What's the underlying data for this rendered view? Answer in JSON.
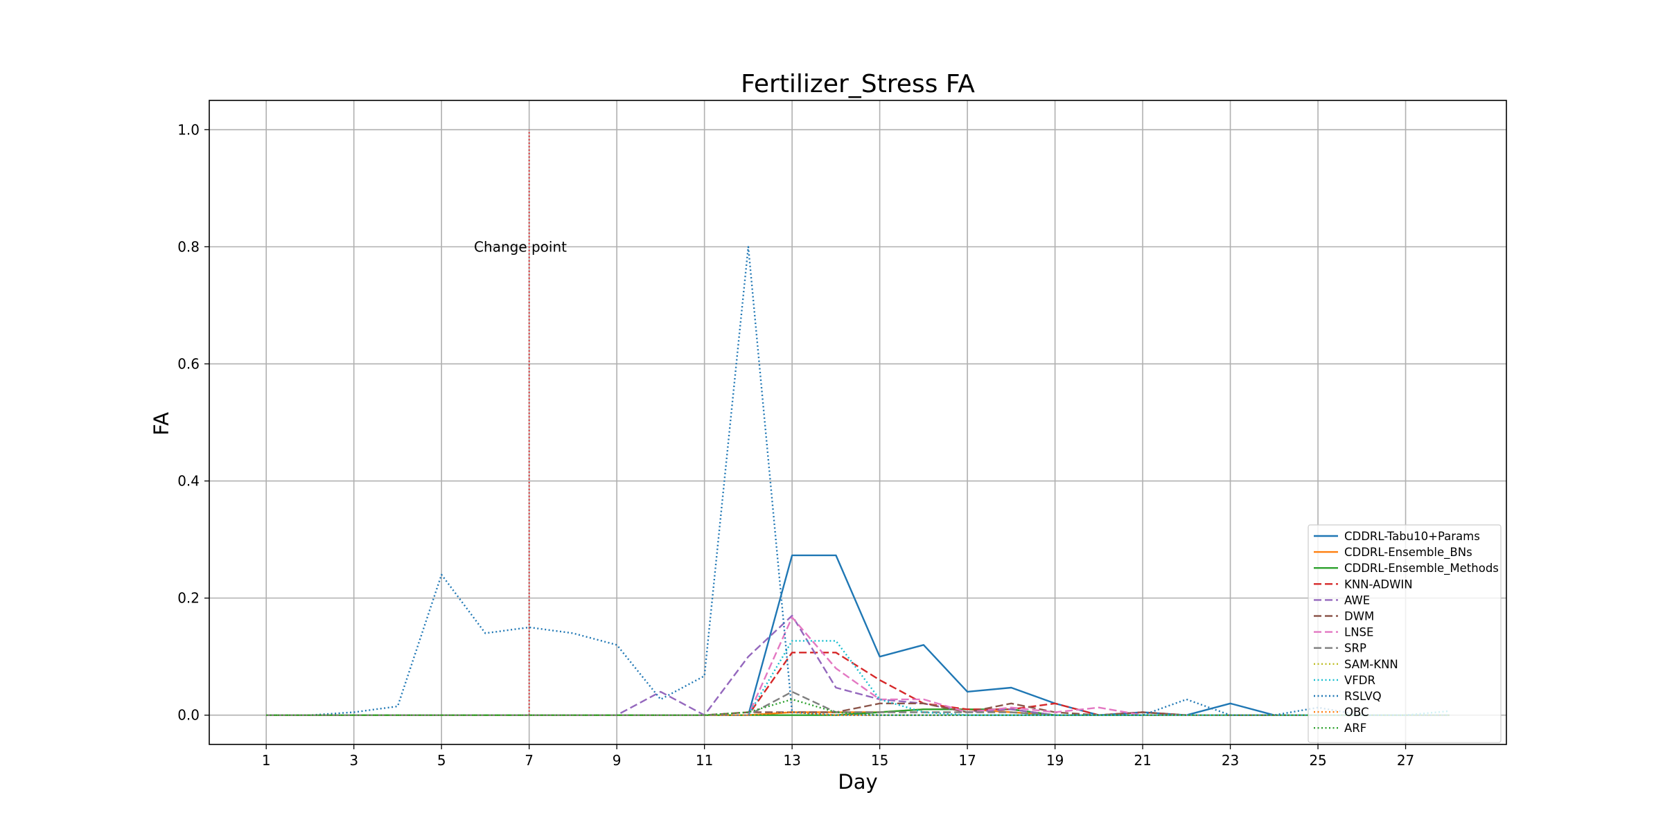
{
  "chart_data": {
    "type": "line",
    "title": "Fertilizer_Stress FA",
    "xlabel": "Day",
    "ylabel": "FA",
    "xlim": [
      -0.3,
      29.3
    ],
    "ylim": [
      -0.05,
      1.05
    ],
    "xticks": [
      1,
      3,
      5,
      7,
      9,
      11,
      13,
      15,
      17,
      19,
      21,
      23,
      25,
      27
    ],
    "yticks": [
      0.0,
      0.2,
      0.4,
      0.6,
      0.8,
      1.0
    ],
    "ytick_labels": [
      "0.0",
      "0.2",
      "0.4",
      "0.6",
      "0.8",
      "1.0"
    ],
    "grid": true,
    "legend_position": "lower-right",
    "x": [
      1,
      2,
      3,
      4,
      5,
      6,
      7,
      8,
      9,
      10,
      11,
      12,
      13,
      14,
      15,
      16,
      17,
      18,
      19,
      20,
      21,
      22,
      23,
      24,
      25,
      26,
      27,
      28
    ],
    "series": [
      {
        "name": "CDDRL-Tabu10+Params",
        "color": "#1f77b4",
        "dash": "solid",
        "values": [
          0,
          0,
          0,
          0,
          0,
          0,
          0,
          0,
          0,
          0,
          0,
          0,
          0.273,
          0.273,
          0.1,
          0.12,
          0.04,
          0.047,
          0.02,
          0,
          0.005,
          0,
          0.02,
          0,
          0,
          0,
          0,
          0
        ]
      },
      {
        "name": "CDDRL-Ensemble_BNs",
        "color": "#ff7f0e",
        "dash": "solid",
        "values": [
          0,
          0,
          0,
          0,
          0,
          0,
          0,
          0,
          0,
          0,
          0,
          0,
          0.005,
          0.005,
          0.005,
          0.01,
          0.01,
          0.005,
          0,
          0,
          0,
          0,
          0,
          0,
          0,
          0,
          0,
          0
        ]
      },
      {
        "name": "CDDRL-Ensemble_Methods",
        "color": "#2ca02c",
        "dash": "solid",
        "values": [
          0,
          0,
          0,
          0,
          0,
          0,
          0,
          0,
          0,
          0,
          0,
          0,
          0,
          0,
          0.005,
          0.01,
          0.01,
          0.01,
          0,
          0,
          0,
          0,
          0,
          0,
          0,
          0,
          0,
          0
        ]
      },
      {
        "name": "KNN-ADWIN",
        "color": "#d62728",
        "dash": "dashed",
        "values": [
          0,
          0,
          0,
          0,
          0,
          0,
          0,
          0,
          0,
          0,
          0,
          0,
          0.107,
          0.107,
          0.06,
          0.02,
          0.01,
          0.01,
          0.02,
          0,
          0.005,
          0,
          0,
          0,
          0,
          0,
          0,
          0
        ]
      },
      {
        "name": "AWE",
        "color": "#9467bd",
        "dash": "dashed",
        "values": [
          0,
          0,
          0,
          0,
          0,
          0,
          0,
          0,
          0,
          0.04,
          0,
          0.1,
          0.17,
          0.047,
          0.027,
          0.02,
          0.005,
          0.01,
          0,
          0,
          0,
          0,
          0,
          0,
          0,
          0,
          0,
          0
        ]
      },
      {
        "name": "DWM",
        "color": "#8c564b",
        "dash": "dashed",
        "values": [
          0,
          0,
          0,
          0,
          0,
          0,
          0,
          0,
          0,
          0,
          0,
          0.005,
          0.005,
          0.005,
          0.02,
          0.02,
          0.005,
          0.02,
          0.005,
          0,
          0.005,
          0,
          0,
          0,
          0,
          0,
          0,
          0
        ]
      },
      {
        "name": "LNSE",
        "color": "#e377c2",
        "dash": "dashed",
        "values": [
          0,
          0,
          0,
          0,
          0,
          0,
          0,
          0,
          0,
          0,
          0,
          0,
          0.167,
          0.08,
          0.027,
          0.027,
          0.005,
          0.013,
          0.005,
          0.013,
          0,
          0,
          0,
          0,
          0,
          0,
          0,
          0
        ]
      },
      {
        "name": "SRP",
        "color": "#7f7f7f",
        "dash": "dashed",
        "values": [
          0,
          0,
          0,
          0,
          0,
          0,
          0,
          0,
          0,
          0,
          0,
          0,
          0.04,
          0.005,
          0.005,
          0.005,
          0.005,
          0.005,
          0,
          0,
          0,
          0,
          0,
          0,
          0,
          0,
          0,
          0
        ]
      },
      {
        "name": "SAM-KNN",
        "color": "#bcbd22",
        "dash": "dotted",
        "values": [
          0,
          0,
          0,
          0,
          0,
          0,
          0,
          0,
          0,
          0,
          0,
          0,
          0.005,
          0,
          0,
          0,
          0,
          0,
          0,
          0,
          0,
          0,
          0,
          0,
          0,
          0,
          0,
          0
        ]
      },
      {
        "name": "VFDR",
        "color": "#17becf",
        "dash": "dotted",
        "values": [
          0,
          0,
          0,
          0,
          0,
          0,
          0,
          0,
          0,
          0,
          0,
          0,
          0.127,
          0.127,
          0.027,
          0.005,
          0,
          0,
          0,
          0,
          0,
          0,
          0,
          0,
          0,
          0,
          0,
          0.007
        ]
      },
      {
        "name": "RSLVQ",
        "color": "#1f77b4",
        "dash": "dotted",
        "values": [
          0,
          0,
          0.005,
          0.015,
          0.24,
          0.14,
          0.15,
          0.14,
          0.12,
          0.027,
          0.067,
          0.8,
          0.005,
          0,
          0,
          0,
          0,
          0,
          0,
          0,
          0,
          0.027,
          0,
          0,
          0.013,
          0,
          0,
          0
        ]
      },
      {
        "name": "OBC",
        "color": "#ff7f0e",
        "dash": "dotted",
        "values": [
          0,
          0,
          0,
          0,
          0,
          0,
          0,
          0,
          0,
          0,
          0,
          0,
          0.005,
          0,
          0,
          0,
          0,
          0,
          0,
          0,
          0,
          0,
          0,
          0,
          0,
          0,
          0,
          0
        ]
      },
      {
        "name": "ARF",
        "color": "#2ca02c",
        "dash": "dotted",
        "values": [
          0,
          0,
          0,
          0,
          0,
          0,
          0,
          0,
          0,
          0,
          0,
          0.005,
          0.027,
          0.005,
          0,
          0,
          0,
          0,
          0,
          0,
          0,
          0,
          0,
          0,
          0,
          0,
          0,
          0
        ]
      }
    ],
    "annotations": [
      {
        "text": "Change point",
        "x": 6.8,
        "y": 0.8,
        "line_x": 7,
        "line_y": [
          0,
          1.0
        ],
        "line_color": "#d62728"
      }
    ]
  }
}
